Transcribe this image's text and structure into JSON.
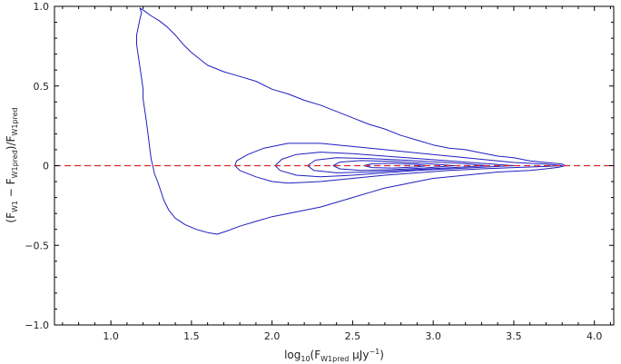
{
  "chart_data": {
    "type": "contour",
    "xlabel": {
      "pre": "log",
      "pre_sub": "10",
      "mid": "(F",
      "mid_sub": "W1pred",
      "post": " μJy",
      "post_sup": "−1",
      "end": ")"
    },
    "ylabel": {
      "a": "(F",
      "a_sub": "W1",
      "b": " − F",
      "b_sub": "W1pred",
      "c": ")/F",
      "c_sub": "W1pred"
    },
    "xlim": [
      0.65,
      4.12
    ],
    "ylim": [
      -1.0,
      1.0
    ],
    "x_ticks": [
      1.0,
      1.5,
      2.0,
      2.5,
      3.0,
      3.5,
      4.0
    ],
    "x_tick_labels": [
      "1.0",
      "1.5",
      "2.0",
      "2.5",
      "3.0",
      "3.5",
      "4.0"
    ],
    "y_ticks": [
      -1.0,
      -0.5,
      0,
      0.5,
      1.0
    ],
    "y_tick_labels": [
      "−1.0",
      "−0.5",
      "0",
      "0.5",
      "1.0"
    ],
    "reference_line": {
      "y": 0,
      "style": "dashed",
      "color": "#d62728"
    },
    "contour_color": "#1f1fbf",
    "contours": [
      {
        "name": "outer",
        "points": [
          [
            1.18,
            0.99
          ],
          [
            1.19,
            0.96
          ],
          [
            1.18,
            0.92
          ],
          [
            1.17,
            0.87
          ],
          [
            1.16,
            0.82
          ],
          [
            1.16,
            0.76
          ],
          [
            1.17,
            0.69
          ],
          [
            1.18,
            0.62
          ],
          [
            1.19,
            0.55
          ],
          [
            1.2,
            0.48
          ],
          [
            1.2,
            0.42
          ],
          [
            1.21,
            0.35
          ],
          [
            1.22,
            0.28
          ],
          [
            1.23,
            0.2
          ],
          [
            1.24,
            0.12
          ],
          [
            1.25,
            0.04
          ],
          [
            1.26,
            0.0
          ],
          [
            1.27,
            -0.05
          ],
          [
            1.29,
            -0.1
          ],
          [
            1.31,
            -0.16
          ],
          [
            1.33,
            -0.22
          ],
          [
            1.36,
            -0.28
          ],
          [
            1.4,
            -0.33
          ],
          [
            1.46,
            -0.37
          ],
          [
            1.53,
            -0.4
          ],
          [
            1.6,
            -0.42
          ],
          [
            1.66,
            -0.43
          ],
          [
            1.72,
            -0.41
          ],
          [
            1.8,
            -0.38
          ],
          [
            1.9,
            -0.35
          ],
          [
            2.0,
            -0.32
          ],
          [
            2.1,
            -0.3
          ],
          [
            2.2,
            -0.28
          ],
          [
            2.3,
            -0.26
          ],
          [
            2.4,
            -0.23
          ],
          [
            2.5,
            -0.2
          ],
          [
            2.6,
            -0.17
          ],
          [
            2.7,
            -0.14
          ],
          [
            2.8,
            -0.12
          ],
          [
            2.9,
            -0.1
          ],
          [
            3.0,
            -0.08
          ],
          [
            3.1,
            -0.07
          ],
          [
            3.2,
            -0.06
          ],
          [
            3.3,
            -0.05
          ],
          [
            3.4,
            -0.04
          ],
          [
            3.5,
            -0.035
          ],
          [
            3.6,
            -0.03
          ],
          [
            3.7,
            -0.02
          ],
          [
            3.78,
            -0.01
          ],
          [
            3.82,
            0.0
          ],
          [
            3.8,
            0.01
          ],
          [
            3.7,
            0.02
          ],
          [
            3.6,
            0.03
          ],
          [
            3.5,
            0.05
          ],
          [
            3.4,
            0.06
          ],
          [
            3.3,
            0.08
          ],
          [
            3.2,
            0.1
          ],
          [
            3.1,
            0.11
          ],
          [
            3.0,
            0.13
          ],
          [
            2.9,
            0.16
          ],
          [
            2.8,
            0.19
          ],
          [
            2.7,
            0.23
          ],
          [
            2.6,
            0.26
          ],
          [
            2.5,
            0.3
          ],
          [
            2.4,
            0.34
          ],
          [
            2.3,
            0.38
          ],
          [
            2.2,
            0.41
          ],
          [
            2.1,
            0.45
          ],
          [
            2.0,
            0.48
          ],
          [
            1.9,
            0.53
          ],
          [
            1.8,
            0.56
          ],
          [
            1.7,
            0.59
          ],
          [
            1.6,
            0.63
          ],
          [
            1.55,
            0.67
          ],
          [
            1.5,
            0.71
          ],
          [
            1.45,
            0.76
          ],
          [
            1.4,
            0.82
          ],
          [
            1.35,
            0.87
          ],
          [
            1.3,
            0.91
          ],
          [
            1.25,
            0.94
          ],
          [
            1.21,
            0.97
          ],
          [
            1.18,
            0.99
          ]
        ]
      },
      {
        "name": "level-2",
        "points": [
          [
            1.77,
            0.0
          ],
          [
            1.8,
            -0.03
          ],
          [
            1.9,
            -0.07
          ],
          [
            2.0,
            -0.1
          ],
          [
            2.1,
            -0.11
          ],
          [
            2.3,
            -0.1
          ],
          [
            2.5,
            -0.08
          ],
          [
            2.7,
            -0.06
          ],
          [
            2.9,
            -0.045
          ],
          [
            3.1,
            -0.03
          ],
          [
            3.3,
            -0.02
          ],
          [
            3.5,
            -0.012
          ],
          [
            3.7,
            -0.005
          ],
          [
            3.8,
            0.0
          ],
          [
            3.7,
            0.01
          ],
          [
            3.5,
            0.02
          ],
          [
            3.3,
            0.04
          ],
          [
            3.1,
            0.06
          ],
          [
            2.9,
            0.08
          ],
          [
            2.7,
            0.1
          ],
          [
            2.5,
            0.12
          ],
          [
            2.3,
            0.14
          ],
          [
            2.1,
            0.14
          ],
          [
            1.95,
            0.11
          ],
          [
            1.85,
            0.07
          ],
          [
            1.78,
            0.03
          ],
          [
            1.77,
            0.0
          ]
        ]
      },
      {
        "name": "level-3",
        "points": [
          [
            2.02,
            0.0
          ],
          [
            2.05,
            -0.03
          ],
          [
            2.15,
            -0.06
          ],
          [
            2.3,
            -0.07
          ],
          [
            2.5,
            -0.06
          ],
          [
            2.7,
            -0.045
          ],
          [
            2.9,
            -0.03
          ],
          [
            3.1,
            -0.02
          ],
          [
            3.3,
            -0.01
          ],
          [
            3.5,
            0.0
          ],
          [
            3.3,
            0.015
          ],
          [
            3.1,
            0.03
          ],
          [
            2.9,
            0.045
          ],
          [
            2.7,
            0.06
          ],
          [
            2.5,
            0.075
          ],
          [
            2.3,
            0.085
          ],
          [
            2.15,
            0.07
          ],
          [
            2.06,
            0.04
          ],
          [
            2.02,
            0.0
          ]
        ]
      },
      {
        "name": "level-4",
        "points": [
          [
            2.22,
            0.0
          ],
          [
            2.26,
            -0.03
          ],
          [
            2.4,
            -0.045
          ],
          [
            2.6,
            -0.04
          ],
          [
            2.8,
            -0.03
          ],
          [
            3.0,
            -0.018
          ],
          [
            3.2,
            -0.008
          ],
          [
            3.33,
            0.0
          ],
          [
            3.2,
            0.012
          ],
          [
            3.0,
            0.024
          ],
          [
            2.8,
            0.036
          ],
          [
            2.6,
            0.045
          ],
          [
            2.4,
            0.05
          ],
          [
            2.27,
            0.035
          ],
          [
            2.22,
            0.0
          ]
        ]
      },
      {
        "name": "level-5",
        "points": [
          [
            2.38,
            0.0
          ],
          [
            2.42,
            -0.02
          ],
          [
            2.55,
            -0.03
          ],
          [
            2.75,
            -0.025
          ],
          [
            2.95,
            -0.014
          ],
          [
            3.13,
            0.0
          ],
          [
            2.95,
            0.014
          ],
          [
            2.75,
            0.026
          ],
          [
            2.55,
            0.032
          ],
          [
            2.42,
            0.022
          ],
          [
            2.38,
            0.0
          ]
        ]
      },
      {
        "name": "level-6",
        "points": [
          [
            2.57,
            0.0
          ],
          [
            2.62,
            -0.012
          ],
          [
            2.75,
            -0.015
          ],
          [
            2.9,
            -0.008
          ],
          [
            2.96,
            0.0
          ],
          [
            2.9,
            0.008
          ],
          [
            2.75,
            0.015
          ],
          [
            2.62,
            0.012
          ],
          [
            2.57,
            0.0
          ]
        ]
      }
    ]
  }
}
